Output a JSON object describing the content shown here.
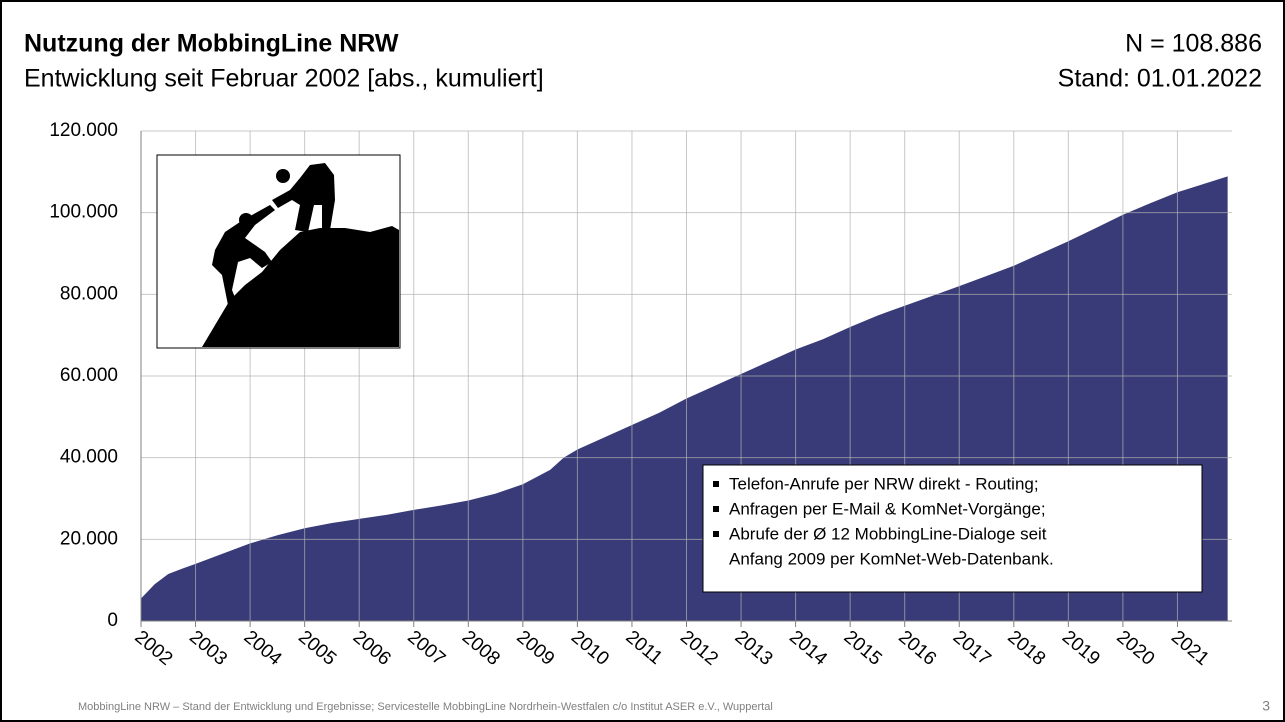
{
  "chart_data": {
    "type": "area",
    "title": "Nutzung der MobbingLine NRW",
    "subtitle": "Entwicklung seit Februar 2002 [abs., kumuliert]",
    "n_label": "N = 108.886",
    "stand_label": "Stand: 01.01.2022",
    "color": "#383b78",
    "grid": true,
    "x": [
      2002,
      2002.25,
      2002.5,
      2002.75,
      2003,
      2003.5,
      2004,
      2004.5,
      2005,
      2005.5,
      2006,
      2006.5,
      2007,
      2007.5,
      2008,
      2008.5,
      2009,
      2009.5,
      2009.75,
      2010,
      2010.5,
      2011,
      2011.5,
      2012,
      2012.5,
      2013,
      2013.5,
      2014,
      2014.5,
      2015,
      2015.5,
      2016,
      2016.5,
      2017,
      2017.5,
      2018,
      2018.5,
      2019,
      2019.5,
      2020,
      2020.5,
      2021,
      2021.5,
      2021.92
    ],
    "values": [
      5500,
      9000,
      11500,
      12800,
      14000,
      16500,
      19000,
      21000,
      22700,
      24000,
      25000,
      26000,
      27200,
      28300,
      29500,
      31200,
      33500,
      37000,
      40000,
      42000,
      45000,
      48000,
      51000,
      54500,
      57500,
      60500,
      63500,
      66500,
      69000,
      72000,
      74800,
      77200,
      79600,
      82000,
      84500,
      87000,
      90000,
      93000,
      96200,
      99500,
      102300,
      105000,
      107100,
      108886
    ],
    "xlim": [
      2002,
      2022
    ],
    "xticks": [
      2002,
      2003,
      2004,
      2005,
      2006,
      2007,
      2008,
      2009,
      2010,
      2011,
      2012,
      2013,
      2014,
      2015,
      2016,
      2017,
      2018,
      2019,
      2020,
      2021
    ],
    "ylim": [
      0,
      120000
    ],
    "yticks": [
      0,
      {
        "value": 20000,
        "label": "20.000"
      },
      {
        "value": 40000,
        "label": "40.000"
      },
      {
        "value": 60000,
        "label": "60.000"
      },
      {
        "value": 80000,
        "label": "80.000"
      },
      {
        "value": 100000,
        "label": "100.000"
      },
      {
        "value": 120000,
        "label": "120.000"
      }
    ],
    "annotations": [
      "Telefon-Anrufe per NRW direkt - Routing;",
      "Anfragen per E-Mail & KomNet-Vorgänge;",
      "Abrufe der Ø 12 MobbingLine-Dialoge seit",
      "Anfang 2009 per KomNet-Web-Datenbank."
    ],
    "footer": "MobbingLine NRW – Stand der Entwicklung und Ergebnisse; Servicestelle MobbingLine Nordrhein-Westfalen c/o Institut ASER e.V., Wuppertal",
    "page_number": "3"
  }
}
